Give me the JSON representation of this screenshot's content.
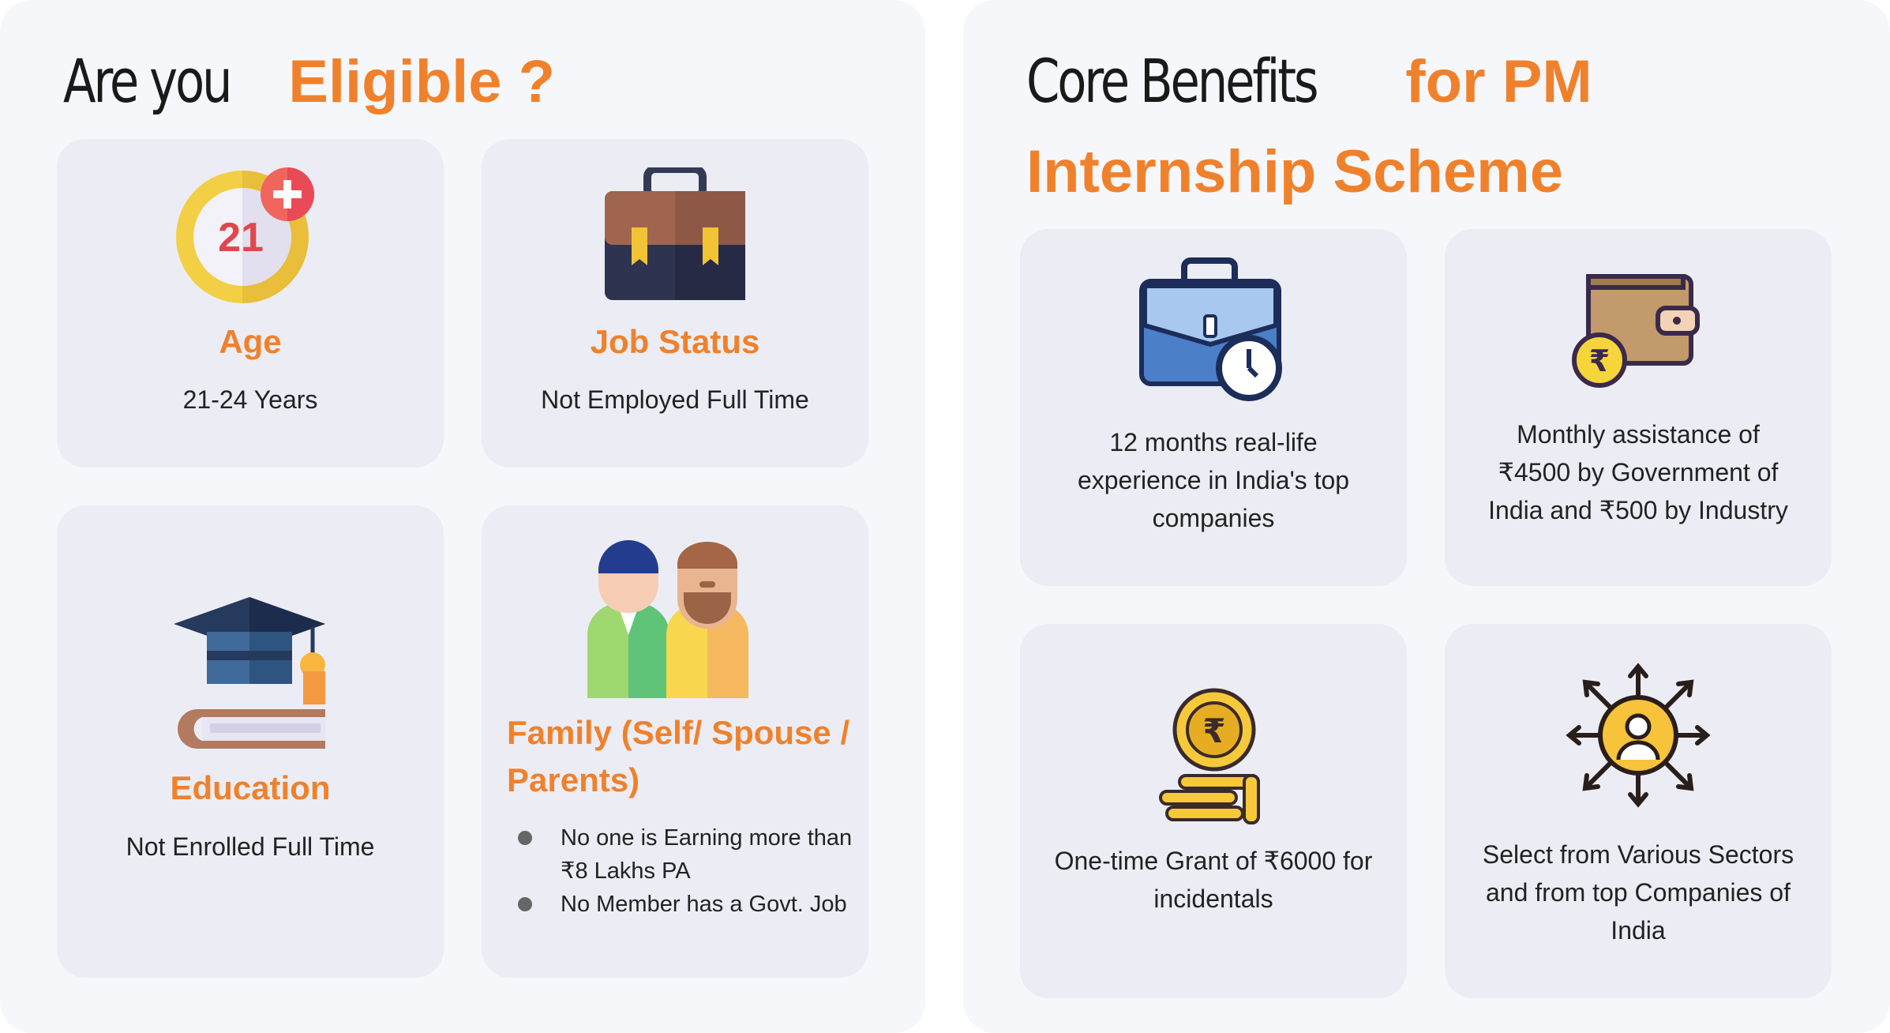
{
  "eligibility": {
    "heading_plain": "Are you",
    "heading_accent": "Eligible ?",
    "cards": [
      {
        "icon": "age-21-icon",
        "title": "Age",
        "text": "21-24 Years"
      },
      {
        "icon": "briefcase-icon",
        "title": "Job Status",
        "text": "Not Employed Full Time"
      },
      {
        "icon": "graduation-cap-books-icon",
        "title": "Education",
        "text": "Not Enrolled Full Time"
      },
      {
        "icon": "family-people-icon",
        "title": "Family (Self/ Spouse / Parents)",
        "bullets": [
          "No one is Earning more than ₹8 Lakhs PA",
          "No Member has a Govt. Job"
        ]
      }
    ]
  },
  "benefits": {
    "heading_plain": "Core Benefits",
    "heading_accent": "for PM Internship Scheme",
    "cards": [
      {
        "icon": "briefcase-clock-icon",
        "text": "12 months real-life experience in India's top companies"
      },
      {
        "icon": "wallet-rupee-icon",
        "text": "Monthly assistance of ₹4500 by Government of India and ₹500 by Industry"
      },
      {
        "icon": "rupee-coins-icon",
        "text": "One-time Grant of ₹6000 for incidentals"
      },
      {
        "icon": "sectors-network-icon",
        "text": "Select from Various Sectors and from top Companies of India"
      }
    ]
  },
  "colors": {
    "accent": "#f0812c",
    "panel_bg": "#f6f7fb",
    "card_bg": "#ecedf4"
  }
}
